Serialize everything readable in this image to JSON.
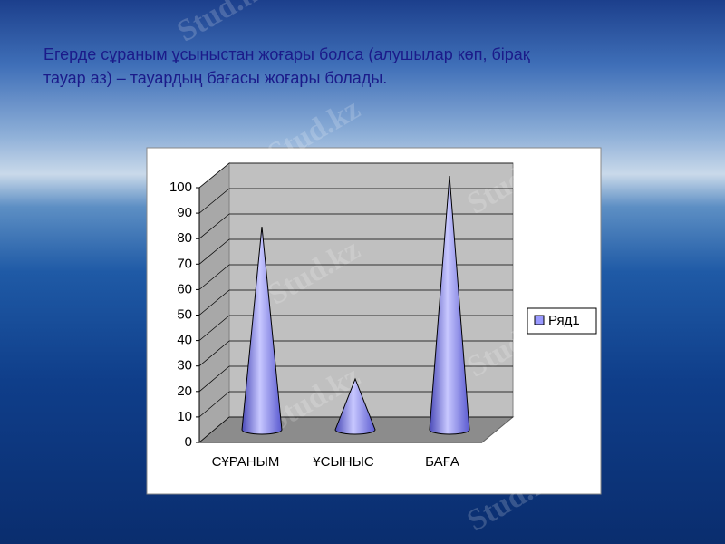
{
  "title_lines": [
    "Егерде сұраным ұсыныстан жоғары болса (алушылар көп, бірақ",
    "тауар аз) – тауардың бағасы жоғары болады."
  ],
  "watermark": "Stud.kz",
  "chart_data": {
    "type": "cone3d",
    "categories": [
      "СҰРАНЫМ",
      "ҰСЫНЫС",
      "БАҒА"
    ],
    "series": [
      {
        "name": "Ряд1",
        "color": "#9999ff",
        "values": [
          80,
          20,
          100
        ]
      }
    ],
    "ylim": [
      0,
      100
    ],
    "yticks": [
      0,
      10,
      20,
      30,
      40,
      50,
      60,
      70,
      80,
      90,
      100
    ],
    "grid": true,
    "legend": "right"
  }
}
